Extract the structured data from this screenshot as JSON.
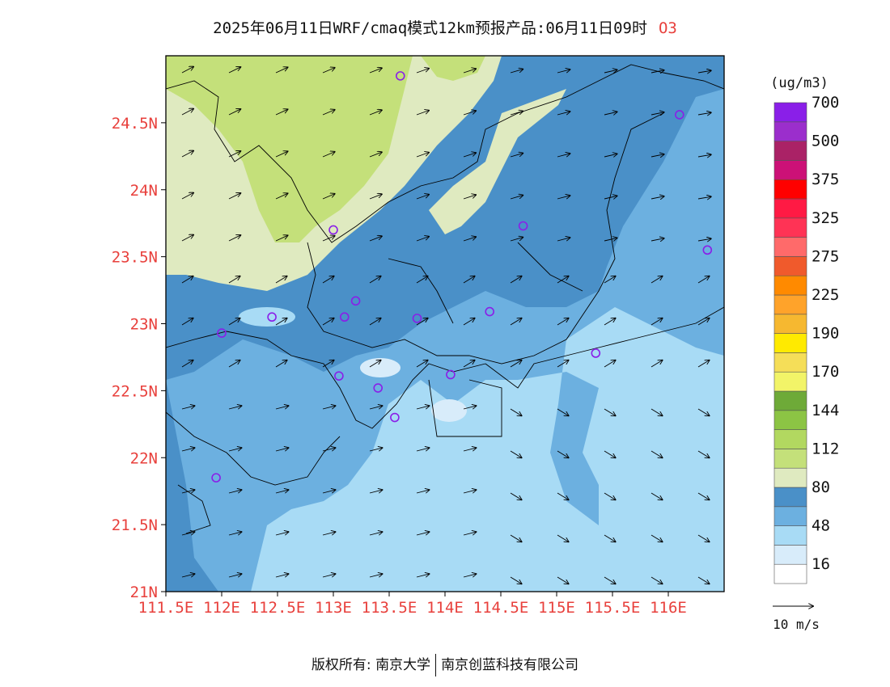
{
  "title": {
    "text": "2025年06月11日WRF/cmaq模式12km预报产品:06月11日09时",
    "species": "O3"
  },
  "map": {
    "lat_ticks": [
      "21N",
      "21.5N",
      "22N",
      "22.5N",
      "23N",
      "23.5N",
      "24N",
      "24.5N"
    ],
    "lon_ticks": [
      "111.5E",
      "112E",
      "112.5E",
      "113E",
      "113.5E",
      "114E",
      "114.5E",
      "115E",
      "115.5E",
      "116E"
    ],
    "tick_label_color": "#e8403c",
    "lat_range": [
      21,
      25
    ],
    "lon_range": [
      111.5,
      116.5
    ]
  },
  "colorbar": {
    "unit": "(ug/m3)",
    "labels": [
      "16",
      "48",
      "80",
      "112",
      "144",
      "170",
      "190",
      "225",
      "275",
      "325",
      "375",
      "500",
      "700"
    ],
    "colors": [
      "#ffffff",
      "#d8ecfa",
      "#a8dbf5",
      "#6cb0e0",
      "#4a90c8",
      "#dfeac0",
      "#c4e07a",
      "#b2d860",
      "#8cc444",
      "#6eaa38",
      "#f2f468",
      "#f5de58",
      "#ffea00",
      "#f6b830",
      "#ffa32a",
      "#ff8a00",
      "#f05a2c",
      "#ff6a6a",
      "#ff3355",
      "#ff1a44",
      "#ff0000",
      "#cc1177",
      "#aa2266",
      "#9b2ecc",
      "#8a1fe8"
    ]
  },
  "wind_legend": {
    "label": "10 m/s"
  },
  "stations": [
    {
      "lon": 113.6,
      "lat": 24.85
    },
    {
      "lon": 116.1,
      "lat": 24.56
    },
    {
      "lon": 113.0,
      "lat": 23.7
    },
    {
      "lon": 114.7,
      "lat": 23.73
    },
    {
      "lon": 116.35,
      "lat": 23.55
    },
    {
      "lon": 113.2,
      "lat": 23.17
    },
    {
      "lon": 112.45,
      "lat": 23.05
    },
    {
      "lon": 113.1,
      "lat": 23.05
    },
    {
      "lon": 113.75,
      "lat": 23.04
    },
    {
      "lon": 114.4,
      "lat": 23.09
    },
    {
      "lon": 112.0,
      "lat": 22.93
    },
    {
      "lon": 115.35,
      "lat": 22.78
    },
    {
      "lon": 113.05,
      "lat": 22.61
    },
    {
      "lon": 114.05,
      "lat": 22.62
    },
    {
      "lon": 113.4,
      "lat": 22.52
    },
    {
      "lon": 113.55,
      "lat": 22.3
    },
    {
      "lon": 111.95,
      "lat": 21.85
    }
  ],
  "copyright": {
    "label": "版权所有:",
    "owner1": "南京大学",
    "owner2": "南京创蓝科技有限公司"
  }
}
